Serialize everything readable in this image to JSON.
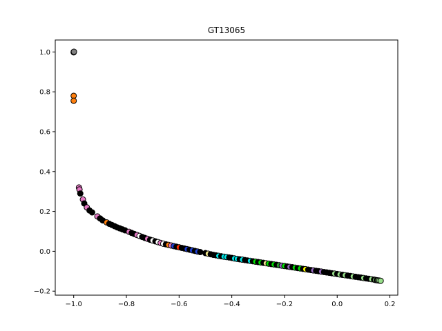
{
  "chart_data": {
    "type": "scatter",
    "title": "GT13065",
    "xlabel": "",
    "ylabel": "",
    "xlim": [
      -1.07,
      0.23
    ],
    "ylim": [
      -0.22,
      1.06
    ],
    "x_ticks": [
      -1.0,
      -0.8,
      -0.6,
      -0.4,
      -0.2,
      0.0,
      0.2
    ],
    "x_tick_labels": [
      "−1.0",
      "−0.8",
      "−0.6",
      "−0.4",
      "−0.2",
      "0.0",
      "0.2"
    ],
    "y_ticks": [
      -0.2,
      0.0,
      0.2,
      0.4,
      0.6,
      0.8,
      1.0
    ],
    "y_tick_labels": [
      "−0.2",
      "0.0",
      "0.2",
      "0.4",
      "0.6",
      "0.8",
      "1.0"
    ],
    "grid": false,
    "legend": false,
    "marker_edge_color": "#000000",
    "points": [
      {
        "x": -1.0,
        "y": 1.0,
        "color": "#000000"
      },
      {
        "x": -1.0,
        "y": 0.998,
        "color": "#ffffff"
      },
      {
        "x": -0.999,
        "y": 1.001,
        "color": "#808080"
      },
      {
        "x": -1.0,
        "y": 0.78,
        "color": "#ff7f0e"
      },
      {
        "x": -1.0,
        "y": 0.755,
        "color": "#ff7f0e"
      },
      {
        "x": -0.98,
        "y": 0.32,
        "color": "#e377c2"
      },
      {
        "x": -0.978,
        "y": 0.31,
        "color": "#e377c2"
      },
      {
        "x": -0.975,
        "y": 0.29,
        "color": "#000000"
      },
      {
        "x": -0.965,
        "y": 0.26,
        "color": "#e377c2"
      },
      {
        "x": -0.96,
        "y": 0.24,
        "color": "#000000"
      },
      {
        "x": -0.95,
        "y": 0.22,
        "color": "#e377c2"
      },
      {
        "x": -0.94,
        "y": 0.205,
        "color": "#000000"
      },
      {
        "x": -0.93,
        "y": 0.195,
        "color": "#000000"
      },
      {
        "x": -0.91,
        "y": 0.175,
        "color": "#e377c2"
      },
      {
        "x": -0.9,
        "y": 0.165,
        "color": "#000000"
      },
      {
        "x": -0.89,
        "y": 0.155,
        "color": "#000000"
      },
      {
        "x": -0.875,
        "y": 0.145,
        "color": "#ff7f0e"
      },
      {
        "x": -0.865,
        "y": 0.138,
        "color": "#000000"
      },
      {
        "x": -0.855,
        "y": 0.132,
        "color": "#000000"
      },
      {
        "x": -0.845,
        "y": 0.126,
        "color": "#000000"
      },
      {
        "x": -0.835,
        "y": 0.12,
        "color": "#000000"
      },
      {
        "x": -0.825,
        "y": 0.115,
        "color": "#000000"
      },
      {
        "x": -0.815,
        "y": 0.11,
        "color": "#000000"
      },
      {
        "x": -0.805,
        "y": 0.105,
        "color": "#000000"
      },
      {
        "x": -0.79,
        "y": 0.098,
        "color": "#e377c2"
      },
      {
        "x": -0.78,
        "y": 0.092,
        "color": "#000000"
      },
      {
        "x": -0.77,
        "y": 0.087,
        "color": "#000000"
      },
      {
        "x": -0.76,
        "y": 0.082,
        "color": "#e377c2"
      },
      {
        "x": -0.75,
        "y": 0.077,
        "color": "#ffffff"
      },
      {
        "x": -0.74,
        "y": 0.072,
        "color": "#000000"
      },
      {
        "x": -0.73,
        "y": 0.067,
        "color": "#000000"
      },
      {
        "x": -0.72,
        "y": 0.063,
        "color": "#e377c2"
      },
      {
        "x": -0.71,
        "y": 0.058,
        "color": "#000000"
      },
      {
        "x": -0.7,
        "y": 0.054,
        "color": "#ffffff"
      },
      {
        "x": -0.69,
        "y": 0.05,
        "color": "#000000"
      },
      {
        "x": -0.68,
        "y": 0.046,
        "color": "#ffffff"
      },
      {
        "x": -0.67,
        "y": 0.042,
        "color": "#e377c2"
      },
      {
        "x": -0.66,
        "y": 0.038,
        "color": "#ffffff"
      },
      {
        "x": -0.65,
        "y": 0.035,
        "color": "#000000"
      },
      {
        "x": -0.64,
        "y": 0.032,
        "color": "#ff7f0e"
      },
      {
        "x": -0.63,
        "y": 0.029,
        "color": "#e377c2"
      },
      {
        "x": -0.62,
        "y": 0.026,
        "color": "#1f3fd6"
      },
      {
        "x": -0.61,
        "y": 0.023,
        "color": "#000000"
      },
      {
        "x": -0.6,
        "y": 0.02,
        "color": "#ff2a00"
      },
      {
        "x": -0.59,
        "y": 0.017,
        "color": "#000000"
      },
      {
        "x": -0.58,
        "y": 0.014,
        "color": "#000000"
      },
      {
        "x": -0.57,
        "y": 0.011,
        "color": "#1f3fd6"
      },
      {
        "x": -0.56,
        "y": 0.008,
        "color": "#000000"
      },
      {
        "x": -0.55,
        "y": 0.005,
        "color": "#1f3fd6"
      },
      {
        "x": -0.54,
        "y": 0.002,
        "color": "#000000"
      },
      {
        "x": -0.53,
        "y": -0.001,
        "color": "#1f3fd6"
      },
      {
        "x": -0.52,
        "y": -0.004,
        "color": "#000000"
      },
      {
        "x": -0.5,
        "y": -0.009,
        "color": "#000000"
      },
      {
        "x": -0.49,
        "y": -0.012,
        "color": "#f0e68c"
      },
      {
        "x": -0.48,
        "y": -0.015,
        "color": "#000000"
      },
      {
        "x": -0.47,
        "y": -0.018,
        "color": "#000000"
      },
      {
        "x": -0.46,
        "y": -0.02,
        "color": "#000000"
      },
      {
        "x": -0.45,
        "y": -0.023,
        "color": "#00e5e5"
      },
      {
        "x": -0.44,
        "y": -0.025,
        "color": "#000000"
      },
      {
        "x": -0.43,
        "y": -0.027,
        "color": "#00e5e5"
      },
      {
        "x": -0.42,
        "y": -0.029,
        "color": "#00e5e5"
      },
      {
        "x": -0.41,
        "y": -0.031,
        "color": "#000000"
      },
      {
        "x": -0.4,
        "y": -0.033,
        "color": "#000000"
      },
      {
        "x": -0.39,
        "y": -0.036,
        "color": "#00e5e5"
      },
      {
        "x": -0.38,
        "y": -0.038,
        "color": "#00e5e5"
      },
      {
        "x": -0.37,
        "y": -0.04,
        "color": "#000000"
      },
      {
        "x": -0.36,
        "y": -0.042,
        "color": "#00e5e5"
      },
      {
        "x": -0.35,
        "y": -0.044,
        "color": "#000000"
      },
      {
        "x": -0.34,
        "y": -0.046,
        "color": "#000000"
      },
      {
        "x": -0.33,
        "y": -0.048,
        "color": "#00e5e5"
      },
      {
        "x": -0.32,
        "y": -0.05,
        "color": "#000000"
      },
      {
        "x": -0.31,
        "y": -0.052,
        "color": "#00e000"
      },
      {
        "x": -0.3,
        "y": -0.054,
        "color": "#000000"
      },
      {
        "x": -0.29,
        "y": -0.056,
        "color": "#00e000"
      },
      {
        "x": -0.28,
        "y": -0.058,
        "color": "#000000"
      },
      {
        "x": -0.27,
        "y": -0.06,
        "color": "#f0e68c"
      },
      {
        "x": -0.26,
        "y": -0.062,
        "color": "#00e000"
      },
      {
        "x": -0.25,
        "y": -0.064,
        "color": "#000000"
      },
      {
        "x": -0.24,
        "y": -0.066,
        "color": "#00e000"
      },
      {
        "x": -0.23,
        "y": -0.068,
        "color": "#000000"
      },
      {
        "x": -0.22,
        "y": -0.07,
        "color": "#2ca02c"
      },
      {
        "x": -0.21,
        "y": -0.072,
        "color": "#9467bd"
      },
      {
        "x": -0.2,
        "y": -0.074,
        "color": "#00e000"
      },
      {
        "x": -0.19,
        "y": -0.076,
        "color": "#000000"
      },
      {
        "x": -0.18,
        "y": -0.078,
        "color": "#9467bd"
      },
      {
        "x": -0.17,
        "y": -0.08,
        "color": "#000000"
      },
      {
        "x": -0.16,
        "y": -0.082,
        "color": "#00e000"
      },
      {
        "x": -0.15,
        "y": -0.084,
        "color": "#000000"
      },
      {
        "x": -0.14,
        "y": -0.086,
        "color": "#00e000"
      },
      {
        "x": -0.13,
        "y": -0.088,
        "color": "#000000"
      },
      {
        "x": -0.12,
        "y": -0.09,
        "color": "#ffff00"
      },
      {
        "x": -0.11,
        "y": -0.092,
        "color": "#000000"
      },
      {
        "x": -0.1,
        "y": -0.094,
        "color": "#000000"
      },
      {
        "x": -0.09,
        "y": -0.096,
        "color": "#9467bd"
      },
      {
        "x": -0.08,
        "y": -0.098,
        "color": "#000000"
      },
      {
        "x": -0.07,
        "y": -0.1,
        "color": "#000000"
      },
      {
        "x": -0.06,
        "y": -0.102,
        "color": "#9467bd"
      },
      {
        "x": -0.05,
        "y": -0.104,
        "color": "#000000"
      },
      {
        "x": -0.04,
        "y": -0.106,
        "color": "#000000"
      },
      {
        "x": -0.03,
        "y": -0.108,
        "color": "#000000"
      },
      {
        "x": -0.02,
        "y": -0.11,
        "color": "#000000"
      },
      {
        "x": -0.01,
        "y": -0.112,
        "color": "#98df8a"
      },
      {
        "x": 0.0,
        "y": -0.114,
        "color": "#000000"
      },
      {
        "x": 0.01,
        "y": -0.116,
        "color": "#98df8a"
      },
      {
        "x": 0.02,
        "y": -0.118,
        "color": "#000000"
      },
      {
        "x": 0.03,
        "y": -0.12,
        "color": "#98df8a"
      },
      {
        "x": 0.04,
        "y": -0.122,
        "color": "#000000"
      },
      {
        "x": 0.05,
        "y": -0.124,
        "color": "#000000"
      },
      {
        "x": 0.06,
        "y": -0.126,
        "color": "#98df8a"
      },
      {
        "x": 0.07,
        "y": -0.128,
        "color": "#000000"
      },
      {
        "x": 0.08,
        "y": -0.13,
        "color": "#000000"
      },
      {
        "x": 0.09,
        "y": -0.132,
        "color": "#000000"
      },
      {
        "x": 0.1,
        "y": -0.134,
        "color": "#98df8a"
      },
      {
        "x": 0.11,
        "y": -0.136,
        "color": "#000000"
      },
      {
        "x": 0.12,
        "y": -0.138,
        "color": "#000000"
      },
      {
        "x": 0.13,
        "y": -0.14,
        "color": "#98df8a"
      },
      {
        "x": 0.14,
        "y": -0.142,
        "color": "#000000"
      },
      {
        "x": 0.145,
        "y": -0.144,
        "color": "#98df8a"
      },
      {
        "x": 0.15,
        "y": -0.145,
        "color": "#000000"
      },
      {
        "x": 0.155,
        "y": -0.146,
        "color": "#98df8a"
      },
      {
        "x": 0.16,
        "y": -0.147,
        "color": "#98df8a"
      },
      {
        "x": 0.165,
        "y": -0.148,
        "color": "#98df8a"
      }
    ]
  }
}
